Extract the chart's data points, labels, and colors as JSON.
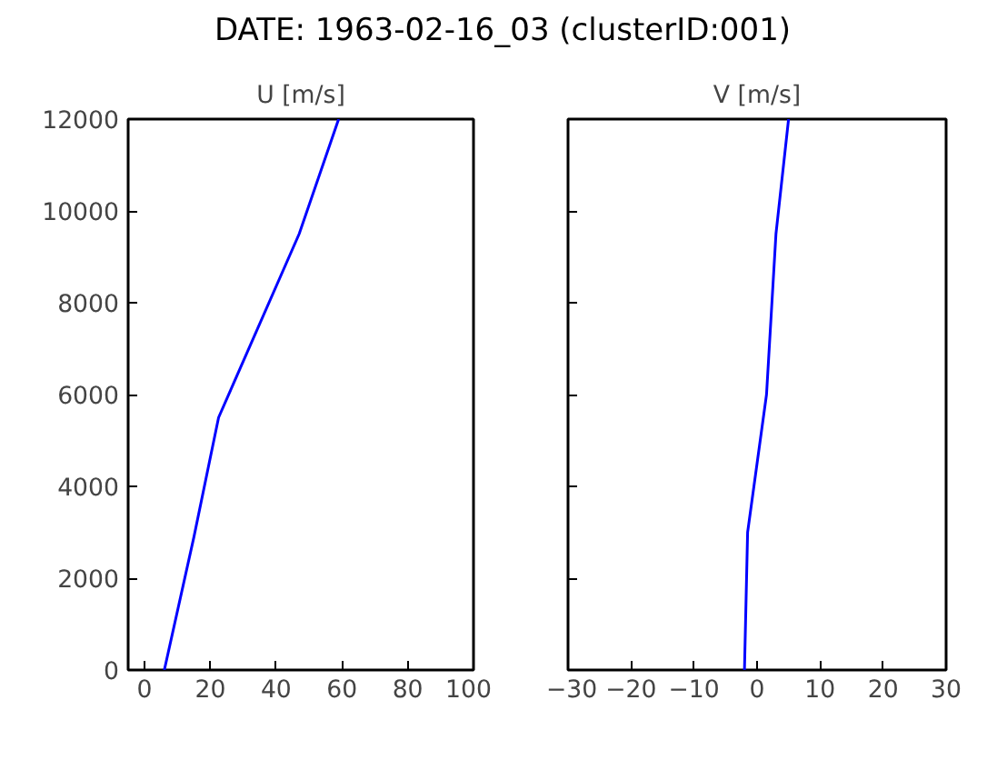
{
  "chart_data": [
    {
      "type": "line",
      "title": "U [m/s]",
      "x": [
        6,
        15,
        22.5,
        47,
        59
      ],
      "series": [
        {
          "color": "#0000ff",
          "values": [
            0,
            2900,
            5500,
            9500,
            12000
          ]
        }
      ],
      "xlim": [
        -5,
        100
      ],
      "xticks": [
        0,
        20,
        40,
        60,
        80,
        100
      ],
      "ylim": [
        0,
        12000
      ],
      "yticks": [
        0,
        2000,
        4000,
        6000,
        8000,
        10000,
        12000
      ],
      "grid": false,
      "marker": "none",
      "line_style": "solid",
      "annotations": [
        "DATE: 1963-02-16_03  (clusterID:001)"
      ]
    },
    {
      "type": "line",
      "title": "V [m/s]",
      "x": [
        -2,
        -1.5,
        1.5,
        3,
        5
      ],
      "series": [
        {
          "color": "#0000ff",
          "values": [
            0,
            3000,
            6000,
            9500,
            12000
          ]
        }
      ],
      "xlim": [
        -30,
        30
      ],
      "xticks": [
        {
          "value": -30,
          "label": "−30"
        },
        {
          "value": -20,
          "label": "−20"
        },
        {
          "value": -10,
          "label": "−10"
        },
        0,
        10,
        20,
        30
      ],
      "ylim": [
        0,
        12000
      ],
      "yticks": [
        0,
        2000,
        4000,
        6000,
        8000,
        10000,
        12000
      ],
      "tick_labels": "x",
      "grid": false,
      "marker": "none",
      "line_style": "solid"
    }
  ]
}
